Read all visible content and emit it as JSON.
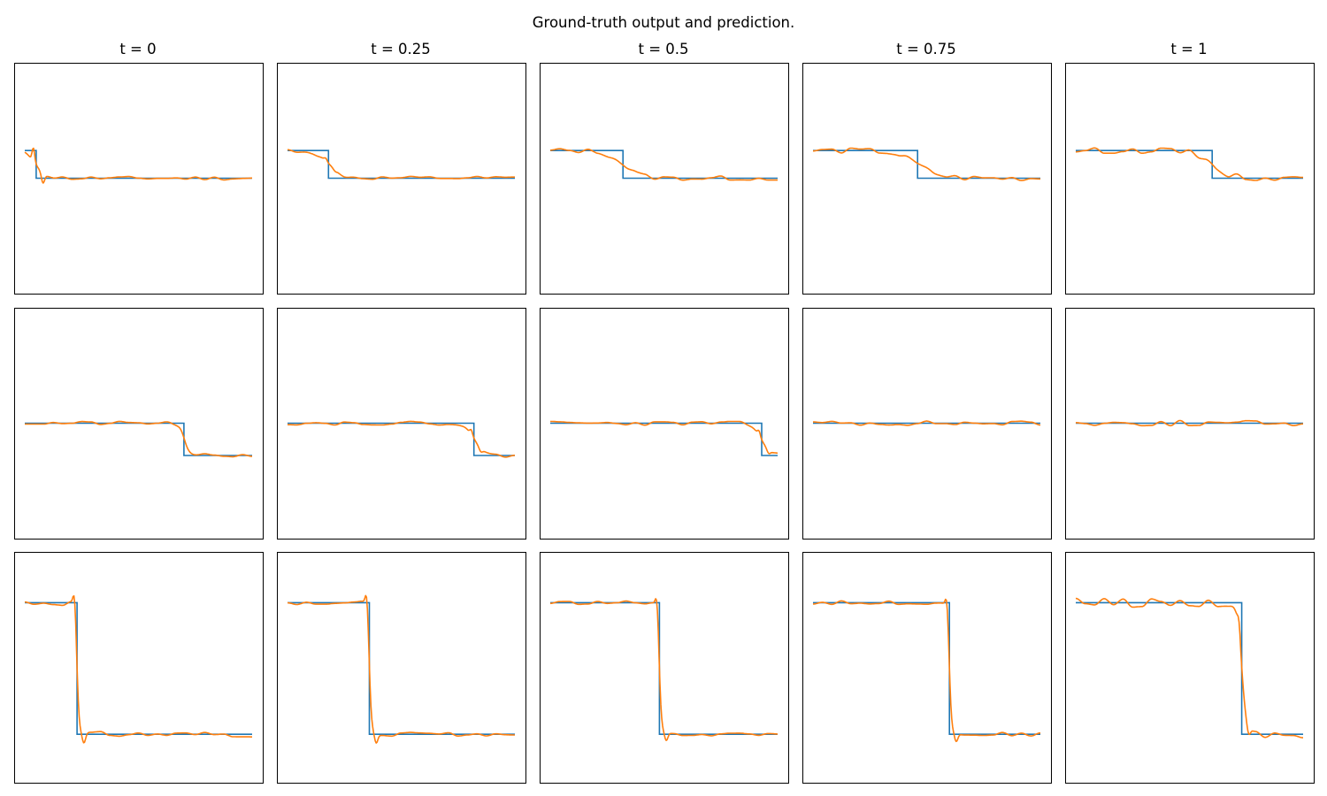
{
  "figure": {
    "title": "Ground-truth output and prediction.",
    "column_titles": [
      "t = 0",
      "t = 0.25",
      "t = 0.5",
      "t = 0.75",
      "t = 1"
    ]
  },
  "chart_data": {
    "type": "line",
    "layout": "grid 3 rows x 5 columns",
    "axes_visible": false,
    "grid": false,
    "legend": "none",
    "xlim": [
      0,
      1
    ],
    "ylim": [
      0,
      1
    ],
    "colors": {
      "ground_truth": "#1f77b4",
      "prediction": "#ff7f0e"
    },
    "panels": [
      {
        "row": 0,
        "col": 0,
        "t": 0,
        "gt": {
          "high": 0.62,
          "low": 0.5,
          "jump": 0.05
        },
        "pred": {
          "noise_amp": 0.008,
          "seed": 11,
          "smooth": 0.025,
          "overshoot": 0.06
        }
      },
      {
        "row": 0,
        "col": 1,
        "t": 0.25,
        "gt": {
          "high": 0.62,
          "low": 0.5,
          "jump": 0.18
        },
        "pred": {
          "noise_amp": 0.008,
          "seed": 12,
          "smooth": 0.03,
          "overshoot": 0.01
        }
      },
      {
        "row": 0,
        "col": 2,
        "t": 0.5,
        "gt": {
          "high": 0.62,
          "low": 0.5,
          "jump": 0.32
        },
        "pred": {
          "noise_amp": 0.01,
          "seed": 13,
          "smooth": 0.04,
          "overshoot": 0.0
        }
      },
      {
        "row": 0,
        "col": 3,
        "t": 0.75,
        "gt": {
          "high": 0.62,
          "low": 0.5,
          "jump": 0.46
        },
        "pred": {
          "noise_amp": 0.012,
          "seed": 14,
          "smooth": 0.05,
          "overshoot": 0.0
        }
      },
      {
        "row": 0,
        "col": 4,
        "t": 1,
        "gt": {
          "high": 0.62,
          "low": 0.5,
          "jump": 0.6
        },
        "pred": {
          "noise_amp": 0.012,
          "seed": 15,
          "smooth": 0.04,
          "overshoot": 0.0
        }
      },
      {
        "row": 1,
        "col": 0,
        "t": 0,
        "gt": {
          "high": 0.5,
          "low": 0.36,
          "jump": 0.7
        },
        "pred": {
          "noise_amp": 0.008,
          "seed": 21,
          "smooth": 0.01,
          "overshoot": 0.0
        }
      },
      {
        "row": 1,
        "col": 1,
        "t": 0.25,
        "gt": {
          "high": 0.5,
          "low": 0.36,
          "jump": 0.82
        },
        "pred": {
          "noise_amp": 0.008,
          "seed": 22,
          "smooth": 0.02,
          "overshoot": 0.02
        }
      },
      {
        "row": 1,
        "col": 2,
        "t": 0.5,
        "gt": {
          "high": 0.5,
          "low": 0.36,
          "jump": 0.93
        },
        "pred": {
          "noise_amp": 0.009,
          "seed": 23,
          "smooth": 0.02,
          "overshoot": 0.02
        }
      },
      {
        "row": 1,
        "col": 3,
        "t": 0.75,
        "gt": {
          "high": 0.5,
          "low": 0.5,
          "jump": 1.0
        },
        "pred": {
          "noise_amp": 0.01,
          "seed": 24,
          "smooth": 0.0,
          "overshoot": 0.0
        }
      },
      {
        "row": 1,
        "col": 4,
        "t": 1,
        "gt": {
          "high": 0.5,
          "low": 0.5,
          "jump": 1.0
        },
        "pred": {
          "noise_amp": 0.012,
          "seed": 25,
          "smooth": 0.0,
          "overshoot": 0.0
        }
      },
      {
        "row": 2,
        "col": 0,
        "t": 0,
        "gt": {
          "high": 0.78,
          "low": 0.21,
          "jump": 0.23
        },
        "pred": {
          "noise_amp": 0.012,
          "seed": 31,
          "smooth": 0.005,
          "overshoot": 0.06
        }
      },
      {
        "row": 2,
        "col": 1,
        "t": 0.25,
        "gt": {
          "high": 0.78,
          "low": 0.21,
          "jump": 0.36
        },
        "pred": {
          "noise_amp": 0.008,
          "seed": 32,
          "smooth": 0.005,
          "overshoot": 0.06
        }
      },
      {
        "row": 2,
        "col": 2,
        "t": 0.5,
        "gt": {
          "high": 0.78,
          "low": 0.21,
          "jump": 0.48
        },
        "pred": {
          "noise_amp": 0.008,
          "seed": 33,
          "smooth": 0.005,
          "overshoot": 0.05
        }
      },
      {
        "row": 2,
        "col": 3,
        "t": 0.75,
        "gt": {
          "high": 0.78,
          "low": 0.21,
          "jump": 0.6
        },
        "pred": {
          "noise_amp": 0.008,
          "seed": 34,
          "smooth": 0.005,
          "overshoot": 0.05
        }
      },
      {
        "row": 2,
        "col": 4,
        "t": 1,
        "gt": {
          "high": 0.78,
          "low": 0.21,
          "jump": 0.73
        },
        "pred": {
          "noise_amp": 0.02,
          "seed": 35,
          "smooth": 0.01,
          "overshoot": 0.05
        }
      }
    ]
  }
}
